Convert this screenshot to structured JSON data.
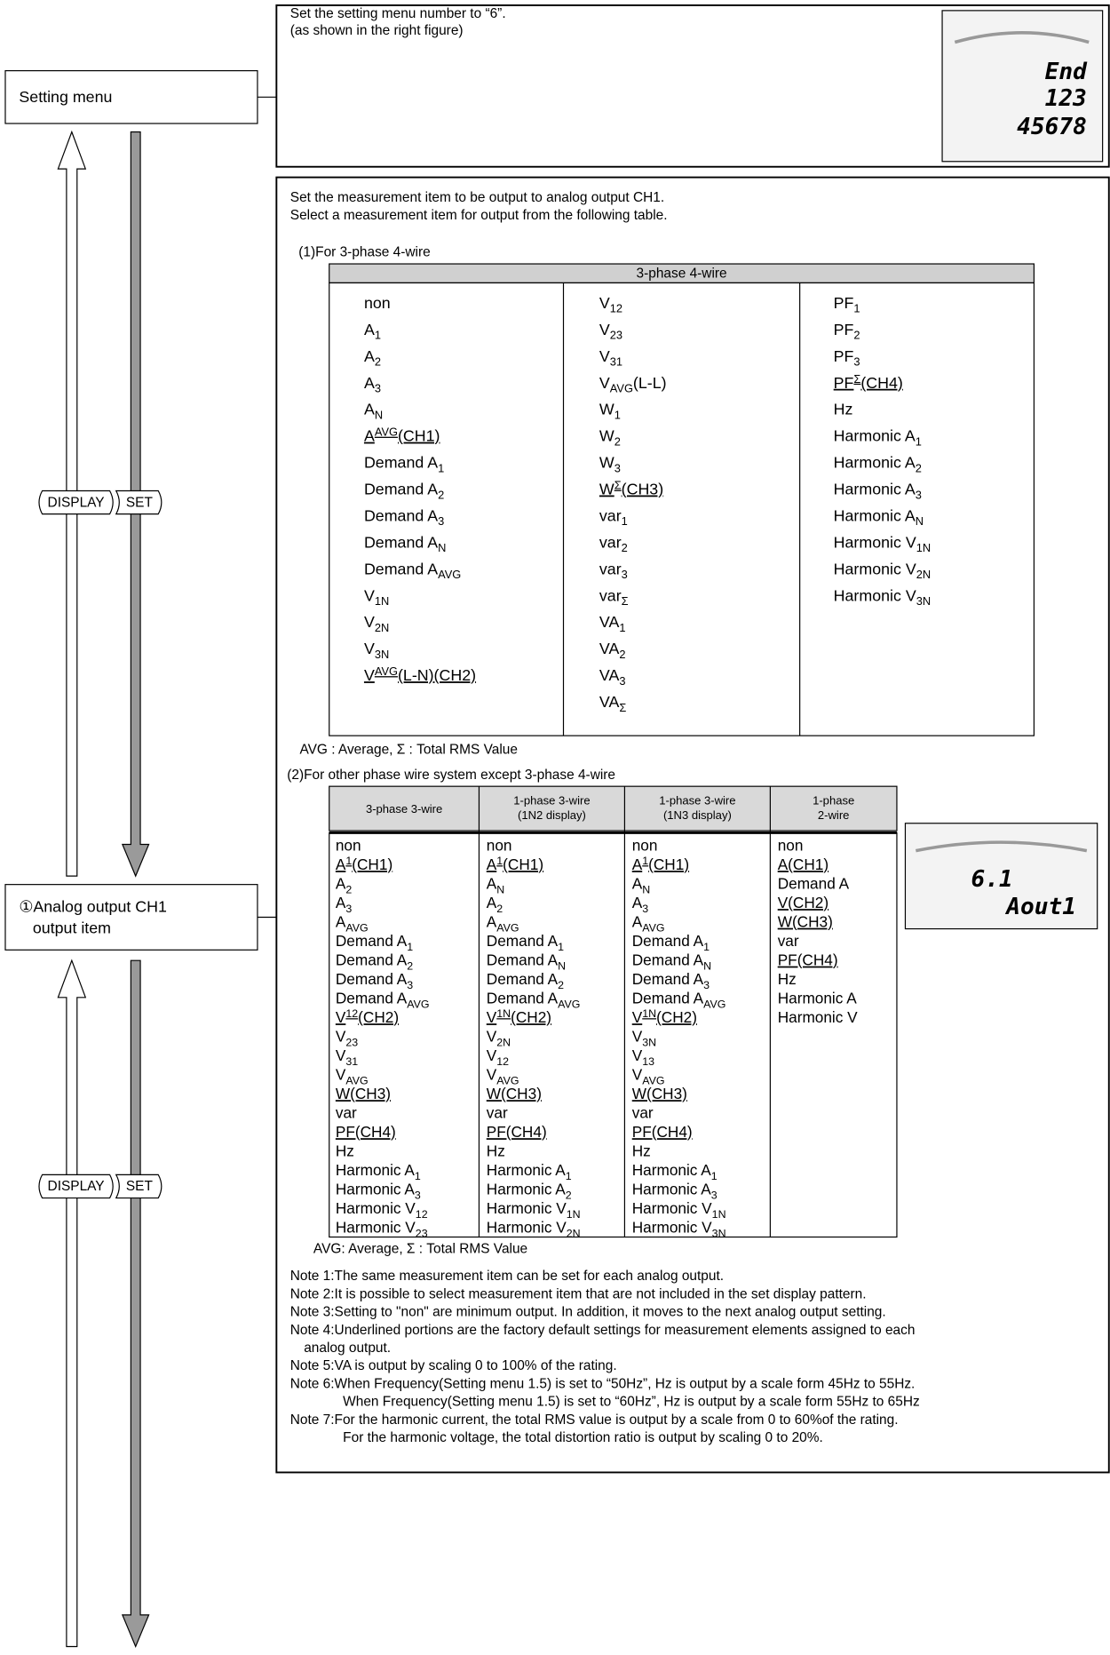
{
  "buttons": [
    "DISPLAY",
    "SET"
  ],
  "step1": {
    "menu_label": [
      "Setting menu"
    ],
    "lines": [
      "Set the setting menu number to “6”.",
      "(as shown in the right figure)"
    ],
    "lcd": [
      "End",
      "123",
      "45678"
    ]
  },
  "step2": {
    "menu_label": [
      "①Analog output CH1",
      "output item"
    ],
    "lines": [
      "Set the measurement item to be output to analog output CH1.",
      "Select a measurement item for output from the following table."
    ],
    "lcd": [
      "6.1",
      "Aout1"
    ],
    "table1": {
      "title": "(1)For 3-phase 4-wire",
      "header": "3-phase 4-wire",
      "columns": [
        [
          "non",
          {
            "t": "A",
            "sub": "1"
          },
          {
            "t": "A",
            "sub": "2"
          },
          {
            "t": "A",
            "sub": "3"
          },
          {
            "t": "A",
            "sub": "N"
          },
          {
            "t": "A",
            "sup": "AVG",
            "after": "(CH1)",
            "u": true
          },
          {
            "t": "Demand A",
            "sub": "1"
          },
          {
            "t": "Demand A",
            "sub": "2"
          },
          {
            "t": "Demand A",
            "sub": "3"
          },
          {
            "t": "Demand A",
            "sub": "N"
          },
          {
            "t": "Demand A",
            "sub": "AVG"
          },
          {
            "t": "V",
            "sub": "1N"
          },
          {
            "t": "V",
            "sub": "2N"
          },
          {
            "t": "V",
            "sub": "3N"
          },
          {
            "t": "V",
            "sup": "AVG",
            "after": "(L-N)(CH2)",
            "u": true
          }
        ],
        [
          {
            "t": "V",
            "sub": "12"
          },
          {
            "t": "V",
            "sub": "23"
          },
          {
            "t": "V",
            "sub": "31"
          },
          {
            "t": "V",
            "sub": "AVG",
            "after": "(L-L)"
          },
          {
            "t": "W",
            "sub": "1"
          },
          {
            "t": "W",
            "sub": "2"
          },
          {
            "t": "W",
            "sub": "3"
          },
          {
            "t": "W",
            "sup": "Σ",
            "after": "(CH3)",
            "u": true
          },
          {
            "t": "var",
            "sub": "1"
          },
          {
            "t": "var",
            "sub": "2"
          },
          {
            "t": "var",
            "sub": "3"
          },
          {
            "t": "var",
            "sub": "Σ"
          },
          {
            "t": "VA",
            "sub": "1"
          },
          {
            "t": "VA",
            "sub": "2"
          },
          {
            "t": "VA",
            "sub": "3"
          },
          {
            "t": "VA",
            "sub": "Σ"
          }
        ],
        [
          {
            "t": "PF",
            "sub": "1"
          },
          {
            "t": "PF",
            "sub": "2"
          },
          {
            "t": "PF",
            "sub": "3"
          },
          {
            "t": "PF",
            "sup": "Σ",
            "after": "(CH4)",
            "u": true
          },
          "Hz",
          {
            "t": "Harmonic A",
            "sub": "1"
          },
          {
            "t": "Harmonic A",
            "sub": "2"
          },
          {
            "t": "Harmonic A",
            "sub": "3"
          },
          {
            "t": "Harmonic A",
            "sub": "N"
          },
          {
            "t": "Harmonic V",
            "sub": "1N"
          },
          {
            "t": "Harmonic V",
            "sub": "2N"
          },
          {
            "t": "Harmonic V",
            "sub": "3N"
          }
        ]
      ],
      "footnote": "AVG : Average,  Σ : Total RMS Value"
    },
    "table2": {
      "title": "(2)For other phase wire system except 3-phase 4-wire",
      "headers": [
        [
          "3-phase 3-wire"
        ],
        [
          "1-phase 3-wire",
          "(1N2 display)"
        ],
        [
          "1-phase 3-wire",
          "(1N3 display)"
        ],
        [
          "1-phase",
          "2-wire"
        ]
      ],
      "columns": [
        [
          "non",
          {
            "t": "A",
            "sup": "1",
            "after": "(CH1)",
            "u": true
          },
          {
            "t": "A",
            "sub": "2"
          },
          {
            "t": "A",
            "sub": "3"
          },
          {
            "t": "A",
            "sub": "AVG"
          },
          {
            "t": "Demand A",
            "sub": "1"
          },
          {
            "t": "Demand A",
            "sub": "2"
          },
          {
            "t": "Demand A",
            "sub": "3"
          },
          {
            "t": "Demand A",
            "sub": "AVG"
          },
          {
            "t": "V",
            "sup": "12",
            "after": "(CH2)",
            "u": true
          },
          {
            "t": "V",
            "sub": "23"
          },
          {
            "t": "V",
            "sub": "31"
          },
          {
            "t": "V",
            "sub": "AVG"
          },
          {
            "t": "W(CH3)",
            "u": true
          },
          "var",
          {
            "t": "PF(CH4)",
            "u": true
          },
          "Hz",
          {
            "t": "Harmonic A",
            "sub": "1"
          },
          {
            "t": "Harmonic A",
            "sub": "3"
          },
          {
            "t": "Harmonic V",
            "sub": "12"
          },
          {
            "t": "Harmonic V",
            "sub": "23"
          }
        ],
        [
          "non",
          {
            "t": "A",
            "sup": "1",
            "after": "(CH1)",
            "u": true
          },
          {
            "t": "A",
            "sub": "N"
          },
          {
            "t": "A",
            "sub": "2"
          },
          {
            "t": "A",
            "sub": "AVG"
          },
          {
            "t": "Demand A",
            "sub": "1"
          },
          {
            "t": "Demand A",
            "sub": "N"
          },
          {
            "t": "Demand A",
            "sub": "2"
          },
          {
            "t": "Demand A",
            "sub": "AVG"
          },
          {
            "t": "V",
            "sup": "1N",
            "after": "(CH2)",
            "u": true
          },
          {
            "t": "V",
            "sub": "2N"
          },
          {
            "t": "V",
            "sub": "12"
          },
          {
            "t": "V",
            "sub": "AVG"
          },
          {
            "t": "W(CH3)",
            "u": true
          },
          "var",
          {
            "t": "PF(CH4)",
            "u": true
          },
          "Hz",
          {
            "t": "Harmonic A",
            "sub": "1"
          },
          {
            "t": "Harmonic A",
            "sub": "2"
          },
          {
            "t": "Harmonic V",
            "sub": "1N"
          },
          {
            "t": "Harmonic V",
            "sub": "2N"
          }
        ],
        [
          "non",
          {
            "t": "A",
            "sup": "1",
            "after": "(CH1)",
            "u": true
          },
          {
            "t": "A",
            "sub": "N"
          },
          {
            "t": "A",
            "sub": "3"
          },
          {
            "t": "A",
            "sub": "AVG"
          },
          {
            "t": "Demand A",
            "sub": "1"
          },
          {
            "t": "Demand A",
            "sub": "N"
          },
          {
            "t": "Demand A",
            "sub": "3"
          },
          {
            "t": "Demand A",
            "sub": "AVG"
          },
          {
            "t": "V",
            "sup": "1N",
            "after": "(CH2)",
            "u": true
          },
          {
            "t": "V",
            "sub": "3N"
          },
          {
            "t": "V",
            "sub": "13"
          },
          {
            "t": "V",
            "sub": "AVG"
          },
          {
            "t": "W(CH3)",
            "u": true
          },
          "var",
          {
            "t": "PF(CH4)",
            "u": true
          },
          "Hz",
          {
            "t": "Harmonic A",
            "sub": "1"
          },
          {
            "t": "Harmonic A",
            "sub": "3"
          },
          {
            "t": "Harmonic V",
            "sub": "1N"
          },
          {
            "t": "Harmonic V",
            "sub": "3N"
          }
        ],
        [
          "non",
          {
            "t": "A(CH1)",
            "u": true
          },
          "Demand A",
          {
            "t": "V(CH2)",
            "u": true
          },
          {
            "t": "W(CH3)",
            "u": true
          },
          "var",
          {
            "t": "PF(CH4)",
            "u": true
          },
          "Hz",
          "Harmonic A",
          "Harmonic V"
        ]
      ],
      "footnote": "AVG: Average,  Σ : Total RMS Value"
    },
    "notes": [
      "Note 1:The same measurement item can be set for each analog output.",
      "Note 2:It is possible to select measurement item that are not included in the set display pattern.",
      "Note 3:Setting to \"non\" are minimum output. In addition, it moves to the next analog output setting.",
      "Note 4:Underlined portions are the factory default settings for measurement elements assigned to each",
      "analog output.",
      "Note 5:VA is output by scaling 0 to 100% of the rating.",
      "Note 6:When Frequency(Setting menu 1.5) is set to “50Hz”, Hz is output by a scale form 45Hz to 55Hz.",
      "When Frequency(Setting menu 1.5) is set to “60Hz”, Hz is output by a scale form 55Hz to 65Hz",
      "Note 7:For the harmonic current, the total RMS value is output by a scale from 0 to 60%of the rating.",
      "For the harmonic voltage, the total distortion ratio is output by scaling 0 to 20%."
    ]
  }
}
